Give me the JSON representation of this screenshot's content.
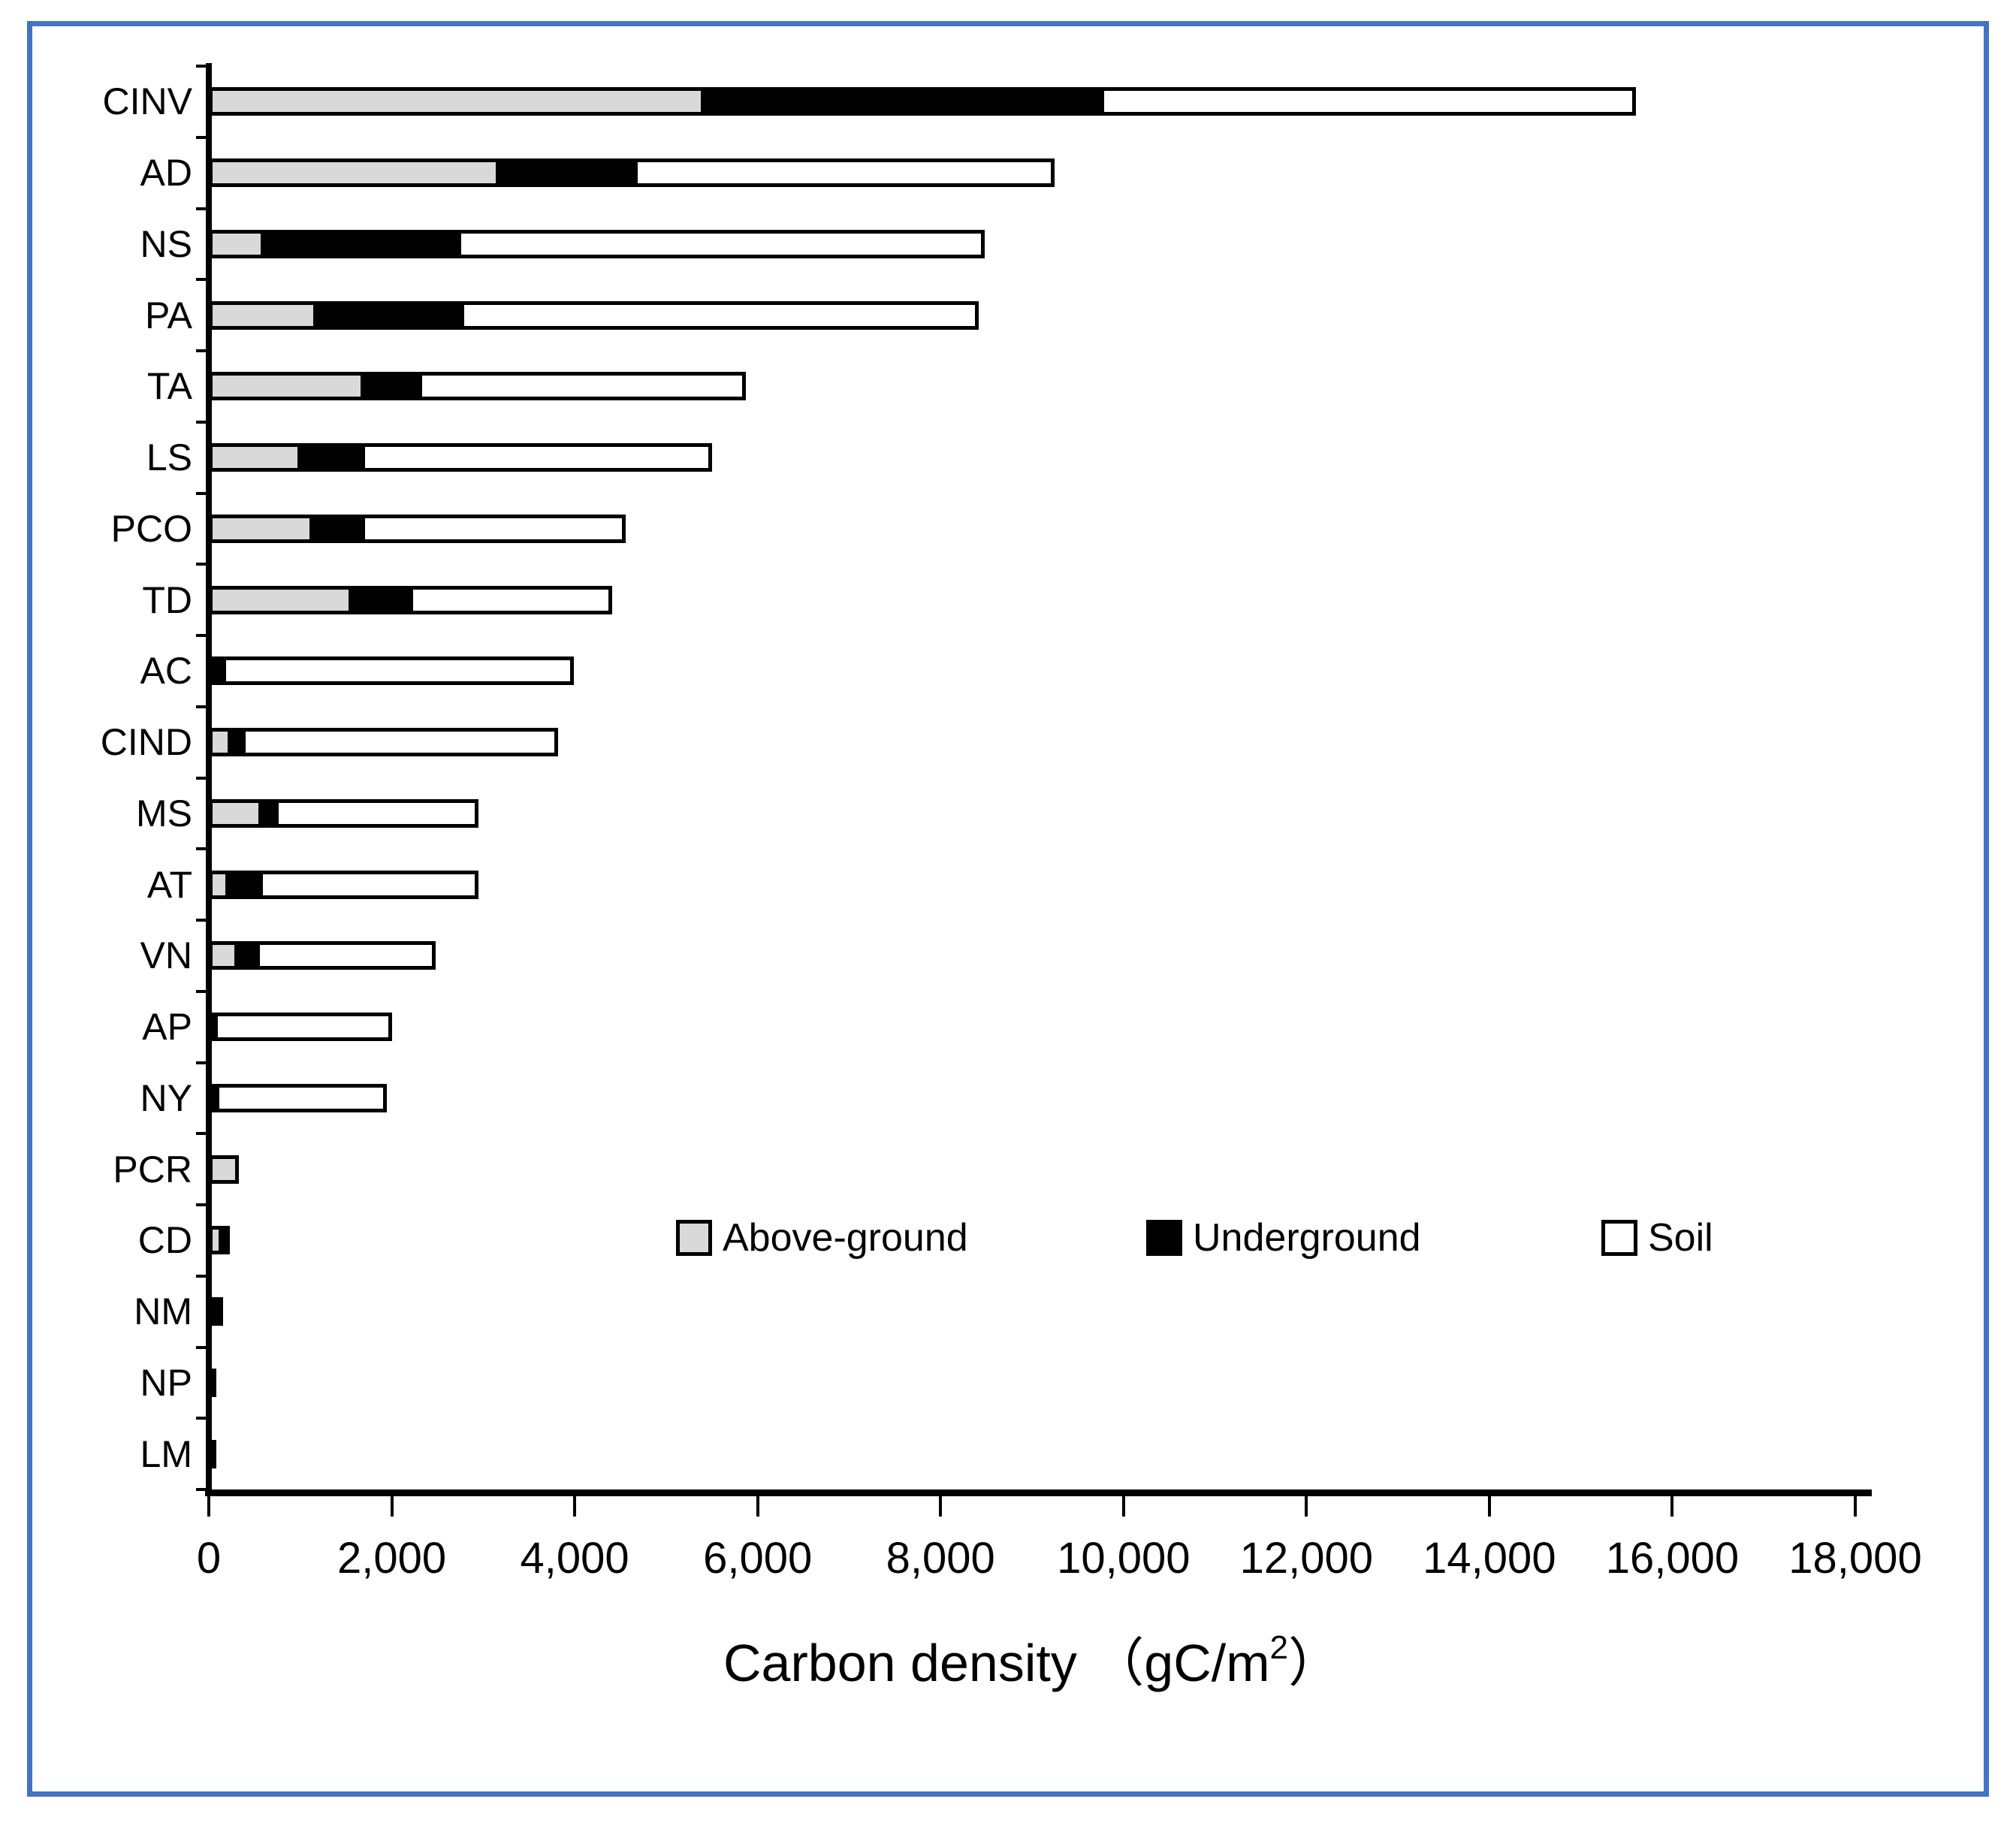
{
  "chart_data": {
    "type": "bar",
    "orientation": "horizontal",
    "stacked": true,
    "grid": false,
    "xlabel": "Carbon density（gC/m²）",
    "xlabel_parts": {
      "prefix": "Carbon density （gC/m",
      "sup": "2",
      "suffix": "）"
    },
    "xlim": [
      0,
      18000
    ],
    "xticks": [
      0,
      2000,
      4000,
      6000,
      8000,
      10000,
      12000,
      14000,
      16000,
      18000
    ],
    "xtick_labels": [
      "0",
      "2,000",
      "4,000",
      "6,000",
      "8,000",
      "10,000",
      "12,000",
      "14,000",
      "16,000",
      "18,000"
    ],
    "categories": [
      "CINV",
      "AD",
      "NS",
      "PA",
      "TA",
      "LS",
      "PCO",
      "TD",
      "AC",
      "CIND",
      "MS",
      "AT",
      "VN",
      "AP",
      "NY",
      "PCR",
      "CD",
      "NM",
      "NP",
      "LM"
    ],
    "series": [
      {
        "name": "Above-ground",
        "color": "#d9d9d9",
        "values": [
          5420,
          3180,
          610,
          1180,
          1700,
          1010,
          1140,
          1570,
          0,
          250,
          580,
          220,
          320,
          0,
          0,
          330,
          150,
          70,
          0,
          0
        ]
      },
      {
        "name": "Underground",
        "color": "#000000",
        "values": [
          4330,
          1470,
          2110,
          1570,
          590,
          660,
          530,
          620,
          150,
          110,
          140,
          330,
          200,
          60,
          70,
          0,
          0,
          0,
          60,
          50
        ]
      },
      {
        "name": "Soil",
        "color": "#ffffff",
        "values": [
          5850,
          4600,
          5760,
          5670,
          3580,
          3830,
          2890,
          2220,
          3840,
          3460,
          2230,
          2400,
          1960,
          1940,
          1880,
          0,
          70,
          45,
          0,
          0
        ]
      }
    ],
    "totals": [
      15600,
      9250,
      8480,
      8420,
      5870,
      5500,
      4560,
      4410,
      3990,
      3820,
      2950,
      2950,
      2480,
      2000,
      1950,
      330,
      220,
      115,
      60,
      50
    ],
    "legend": {
      "position": "inside-lower-middle"
    },
    "frame_color": "#4472c4"
  }
}
